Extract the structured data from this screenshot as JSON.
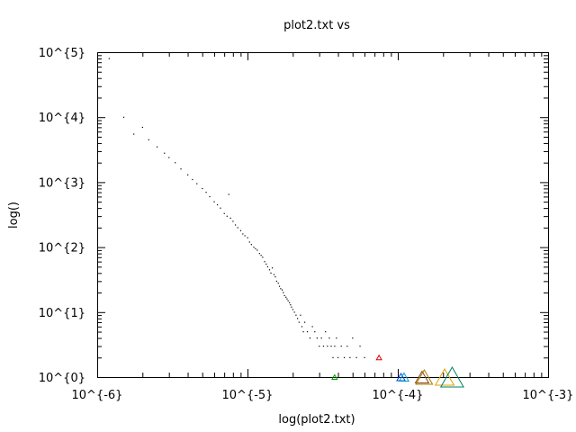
{
  "chart_data": {
    "type": "scatter",
    "title": "plot2.txt vs",
    "xlabel": "log(plot2.txt)",
    "ylabel": "log()",
    "xscale": "log",
    "yscale": "log",
    "xlim": [
      1e-06,
      0.001
    ],
    "ylim": [
      1,
      100000
    ],
    "xticks": [
      1e-06,
      1e-05,
      0.0001,
      0.001
    ],
    "xtick_labels": [
      "10^{-6}",
      "10^{-5}",
      "10^{-4}",
      "10^{-3}"
    ],
    "yticks": [
      1,
      10,
      100,
      1000,
      10000,
      100000
    ],
    "ytick_labels": [
      "10^{0}",
      "10^{1}",
      "10^{2}",
      "10^{3}",
      "10^{4}",
      "10^{5}"
    ],
    "grid": false,
    "colors": {
      "points": "#000000",
      "red": "#e00000",
      "green": "#00a000",
      "blue": "#0040ff",
      "cyan": "#00a0c0",
      "brown": "#8b4513",
      "orange": "#e0a000",
      "teal": "#008060",
      "olive": "#a08000"
    },
    "series": [
      {
        "marker": "dot",
        "points": [
          [
            1.2e-06,
            80000
          ],
          [
            1.5e-06,
            10000
          ],
          [
            1.75e-06,
            5500
          ],
          [
            2e-06,
            7000
          ],
          [
            2.2e-06,
            4500
          ],
          [
            2.5e-06,
            3500
          ],
          [
            2.8e-06,
            2800
          ],
          [
            3e-06,
            2400
          ],
          [
            3.3e-06,
            2000
          ],
          [
            3.6e-06,
            1600
          ],
          [
            4e-06,
            1300
          ],
          [
            4.3e-06,
            1100
          ],
          [
            4.6e-06,
            950
          ],
          [
            5e-06,
            800
          ],
          [
            5.3e-06,
            700
          ],
          [
            5.6e-06,
            600
          ],
          [
            6e-06,
            500
          ],
          [
            6.3e-06,
            450
          ],
          [
            6.6e-06,
            400
          ],
          [
            7e-06,
            330
          ],
          [
            7.3e-06,
            300
          ],
          [
            7.5e-06,
            650
          ],
          [
            7.7e-06,
            280
          ],
          [
            8e-06,
            250
          ],
          [
            8.3e-06,
            220
          ],
          [
            8.6e-06,
            200
          ],
          [
            9e-06,
            180
          ],
          [
            9.3e-06,
            160
          ],
          [
            9.6e-06,
            150
          ],
          [
            1e-05,
            140
          ],
          [
            1.03e-05,
            120
          ],
          [
            1.06e-05,
            110
          ],
          [
            1.1e-05,
            100
          ],
          [
            1.13e-05,
            95
          ],
          [
            1.16e-05,
            90
          ],
          [
            1.2e-05,
            80
          ],
          [
            1.23e-05,
            75
          ],
          [
            1.26e-05,
            70
          ],
          [
            1.3e-05,
            60
          ],
          [
            1.33e-05,
            55
          ],
          [
            1.36e-05,
            50
          ],
          [
            1.4e-05,
            45
          ],
          [
            1.43e-05,
            40
          ],
          [
            1.46e-05,
            48
          ],
          [
            1.5e-05,
            38
          ],
          [
            1.53e-05,
            35
          ],
          [
            1.56e-05,
            30
          ],
          [
            1.6e-05,
            28
          ],
          [
            1.63e-05,
            25
          ],
          [
            1.66e-05,
            23
          ],
          [
            1.7e-05,
            22
          ],
          [
            1.73e-05,
            20
          ],
          [
            1.76e-05,
            18
          ],
          [
            1.8e-05,
            17
          ],
          [
            1.83e-05,
            16
          ],
          [
            1.86e-05,
            15
          ],
          [
            1.9e-05,
            14
          ],
          [
            1.93e-05,
            13
          ],
          [
            1.96e-05,
            12
          ],
          [
            2e-05,
            11
          ],
          [
            2.05e-05,
            10
          ],
          [
            2.1e-05,
            9
          ],
          [
            2.15e-05,
            8
          ],
          [
            2.2e-05,
            7
          ],
          [
            2.25e-05,
            9
          ],
          [
            2.3e-05,
            6
          ],
          [
            2.35e-05,
            5
          ],
          [
            2.4e-05,
            7
          ],
          [
            2.5e-05,
            5
          ],
          [
            2.6e-05,
            4
          ],
          [
            2.7e-05,
            6
          ],
          [
            2.8e-05,
            5
          ],
          [
            2.9e-05,
            4
          ],
          [
            3e-05,
            3
          ],
          [
            3.1e-05,
            4
          ],
          [
            3.2e-05,
            3
          ],
          [
            3.3e-05,
            5
          ],
          [
            3.4e-05,
            3
          ],
          [
            3.5e-05,
            4
          ],
          [
            3.6e-05,
            3
          ],
          [
            3.7e-05,
            2
          ],
          [
            3.8e-05,
            3
          ],
          [
            3.9e-05,
            4
          ],
          [
            4e-05,
            2
          ],
          [
            4.2e-05,
            3
          ],
          [
            4.4e-05,
            2
          ],
          [
            4.6e-05,
            3
          ],
          [
            4.8e-05,
            2
          ],
          [
            5e-05,
            4
          ],
          [
            5.3e-05,
            2
          ],
          [
            5.6e-05,
            3
          ],
          [
            6e-05,
            2
          ]
        ]
      },
      {
        "marker": "triangle",
        "color": "red",
        "size": 5,
        "points": [
          [
            7.5e-05,
            2
          ]
        ]
      },
      {
        "marker": "triangle",
        "color": "green",
        "size": 5,
        "points": [
          [
            3.8e-05,
            1
          ]
        ]
      },
      {
        "marker": "triangle",
        "color": "blue",
        "size": 8,
        "points": [
          [
            0.000105,
            1
          ]
        ]
      },
      {
        "marker": "triangle",
        "color": "cyan",
        "size": 9,
        "points": [
          [
            0.00011,
            1
          ]
        ]
      },
      {
        "marker": "triangle",
        "color": "brown",
        "size": 13,
        "points": [
          [
            0.000145,
            1
          ]
        ]
      },
      {
        "marker": "triangle",
        "color": "olive",
        "size": 16,
        "points": [
          [
            0.00015,
            1
          ]
        ]
      },
      {
        "marker": "triangle",
        "color": "orange",
        "size": 18,
        "points": [
          [
            0.000205,
            1
          ]
        ]
      },
      {
        "marker": "triangle",
        "color": "teal",
        "size": 22,
        "points": [
          [
            0.00023,
            1
          ]
        ]
      }
    ]
  }
}
